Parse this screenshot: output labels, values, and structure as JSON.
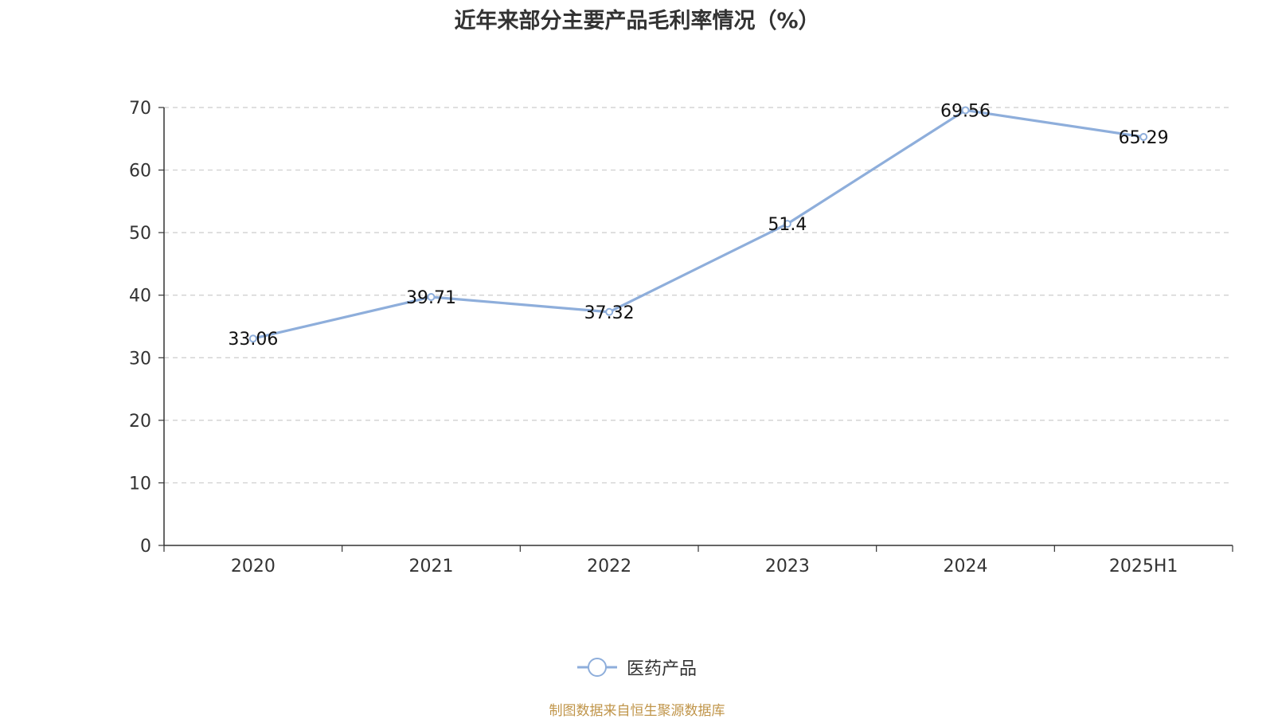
{
  "colors": {
    "series": "#8eaedb",
    "axis": "#333333",
    "grid": "#cccccc",
    "source": "#c0954a"
  },
  "chart_data": {
    "type": "line",
    "title": "近年来部分主要产品毛利率情况（%）",
    "categories": [
      "2020",
      "2021",
      "2022",
      "2023",
      "2024",
      "2025H1"
    ],
    "series": [
      {
        "name": "医药产品",
        "values": [
          33.06,
          39.71,
          37.32,
          51.4,
          69.56,
          65.29
        ]
      }
    ],
    "ylim": [
      0,
      70
    ],
    "yticks": [
      0,
      10,
      20,
      30,
      40,
      50,
      60,
      70
    ],
    "xlabel": "",
    "ylabel": "",
    "grid": true,
    "legend": "bottom-center",
    "source": "制图数据来自恒生聚源数据库"
  }
}
